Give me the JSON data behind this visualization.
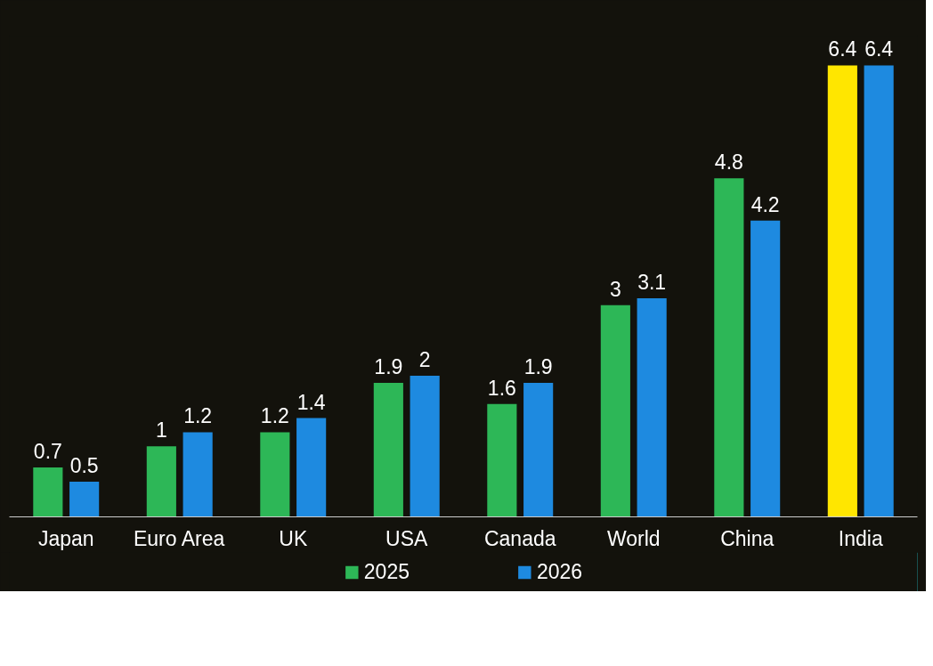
{
  "chart_data": {
    "type": "bar",
    "categories": [
      "Japan",
      "Euro Area",
      "UK",
      "USA",
      "Canada",
      "World",
      "China",
      "India"
    ],
    "series": [
      {
        "name": "2025",
        "color": "#2db757",
        "colors": [
          "#2db757",
          "#2db757",
          "#2db757",
          "#2db757",
          "#2db757",
          "#2db757",
          "#2db757",
          "#ffe600"
        ],
        "values": [
          0.7,
          1,
          1.2,
          1.9,
          1.6,
          3,
          4.8,
          6.4
        ]
      },
      {
        "name": "2026",
        "color": "#1e8ae0",
        "values": [
          0.5,
          1.2,
          1.4,
          2,
          1.9,
          3.1,
          4.2,
          6.4
        ]
      }
    ],
    "tick_labels": "x",
    "data_labels": true,
    "grid": false,
    "legend": "bottom"
  }
}
